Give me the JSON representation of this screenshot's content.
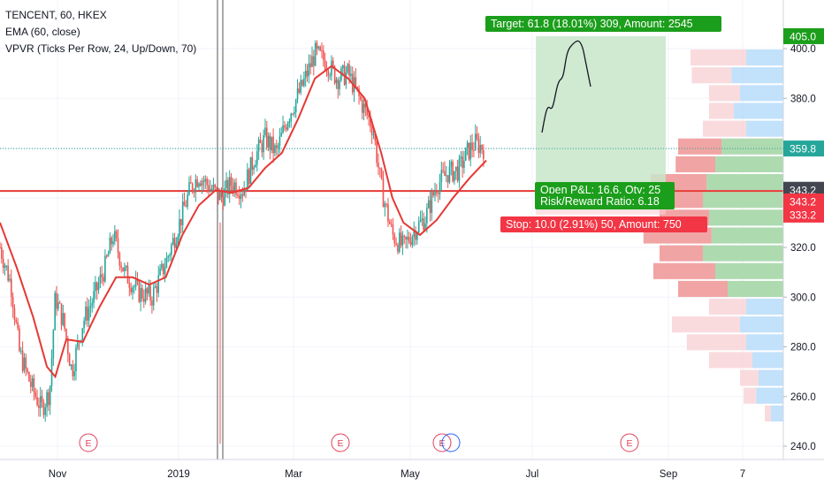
{
  "legend": {
    "symbol": "TENCENT, 60, HKEX",
    "ema": "EMA (60, close)",
    "vpvr": "VPVR (Ticks Per Row, 24, Up/Down, 70)"
  },
  "colors": {
    "up": "#26a69a",
    "down": "#ef5350",
    "ema": "#e53935",
    "support_line": "#e53935",
    "target_fill": "#c8e6c9",
    "target_label": "#1b9e1b",
    "stop_label": "#f23645",
    "vp_up_strong": "#a5d6a7",
    "vp_down_strong": "#ef9a9a",
    "vp_up_light": "#bbdefb",
    "vp_down_light": "#f8d7da"
  },
  "chart_data": {
    "type": "candlestick",
    "x_tick_labels": [
      "Nov",
      "2019",
      "Mar",
      "May",
      "Jul",
      "Sep",
      "7"
    ],
    "y_tick_labels": [
      "400.0",
      "380.0",
      "360.0",
      "340.0",
      "320.0",
      "300.0",
      "280.0",
      "260.0",
      "240.0"
    ],
    "ylim": [
      236,
      410
    ],
    "close_path": [
      {
        "t": 0,
        "p": 320
      },
      {
        "t": 0.02,
        "p": 305
      },
      {
        "t": 0.035,
        "p": 278
      },
      {
        "t": 0.055,
        "p": 265
      },
      {
        "t": 0.075,
        "p": 255
      },
      {
        "t": 0.09,
        "p": 262
      },
      {
        "t": 0.1,
        "p": 300
      },
      {
        "t": 0.115,
        "p": 290
      },
      {
        "t": 0.13,
        "p": 270
      },
      {
        "t": 0.15,
        "p": 290
      },
      {
        "t": 0.17,
        "p": 300
      },
      {
        "t": 0.19,
        "p": 312
      },
      {
        "t": 0.205,
        "p": 325
      },
      {
        "t": 0.225,
        "p": 310
      },
      {
        "t": 0.25,
        "p": 302
      },
      {
        "t": 0.275,
        "p": 300
      },
      {
        "t": 0.3,
        "p": 314
      },
      {
        "t": 0.325,
        "p": 330
      },
      {
        "t": 0.345,
        "p": 344
      },
      {
        "t": 0.36,
        "p": 349
      },
      {
        "t": 0.38,
        "p": 344
      },
      {
        "t": 0.4,
        "p": 340
      },
      {
        "t": 0.42,
        "p": 346
      },
      {
        "t": 0.44,
        "p": 343
      },
      {
        "t": 0.46,
        "p": 356
      },
      {
        "t": 0.48,
        "p": 364
      },
      {
        "t": 0.5,
        "p": 358
      },
      {
        "t": 0.52,
        "p": 372
      },
      {
        "t": 0.545,
        "p": 384
      },
      {
        "t": 0.57,
        "p": 398
      },
      {
        "t": 0.59,
        "p": 395
      },
      {
        "t": 0.61,
        "p": 388
      },
      {
        "t": 0.63,
        "p": 390
      },
      {
        "t": 0.65,
        "p": 380
      },
      {
        "t": 0.675,
        "p": 368
      },
      {
        "t": 0.69,
        "p": 344
      },
      {
        "t": 0.71,
        "p": 325
      },
      {
        "t": 0.73,
        "p": 320
      },
      {
        "t": 0.75,
        "p": 327
      },
      {
        "t": 0.77,
        "p": 332
      },
      {
        "t": 0.79,
        "p": 345
      },
      {
        "t": 0.81,
        "p": 350
      },
      {
        "t": 0.83,
        "p": 351
      },
      {
        "t": 0.845,
        "p": 358
      },
      {
        "t": 0.86,
        "p": 362
      },
      {
        "t": 0.875,
        "p": 360
      }
    ],
    "ema_path": [
      {
        "t": 0,
        "p": 330
      },
      {
        "t": 0.03,
        "p": 312
      },
      {
        "t": 0.06,
        "p": 292
      },
      {
        "t": 0.085,
        "p": 272
      },
      {
        "t": 0.1,
        "p": 268
      },
      {
        "t": 0.12,
        "p": 283
      },
      {
        "t": 0.15,
        "p": 282
      },
      {
        "t": 0.18,
        "p": 296
      },
      {
        "t": 0.21,
        "p": 308
      },
      {
        "t": 0.24,
        "p": 308
      },
      {
        "t": 0.27,
        "p": 305
      },
      {
        "t": 0.3,
        "p": 308
      },
      {
        "t": 0.33,
        "p": 325
      },
      {
        "t": 0.36,
        "p": 337
      },
      {
        "t": 0.39,
        "p": 343
      },
      {
        "t": 0.42,
        "p": 342
      },
      {
        "t": 0.45,
        "p": 344
      },
      {
        "t": 0.48,
        "p": 352
      },
      {
        "t": 0.51,
        "p": 358
      },
      {
        "t": 0.54,
        "p": 372
      },
      {
        "t": 0.57,
        "p": 388
      },
      {
        "t": 0.6,
        "p": 393
      },
      {
        "t": 0.63,
        "p": 388
      },
      {
        "t": 0.66,
        "p": 380
      },
      {
        "t": 0.69,
        "p": 358
      },
      {
        "t": 0.71,
        "p": 340
      },
      {
        "t": 0.73,
        "p": 330
      },
      {
        "t": 0.76,
        "p": 325
      },
      {
        "t": 0.79,
        "p": 331
      },
      {
        "t": 0.82,
        "p": 340
      },
      {
        "t": 0.85,
        "p": 348
      },
      {
        "t": 0.88,
        "p": 355
      }
    ],
    "horizontal_line": 342.7,
    "last_price": 359.8,
    "price_tags": [
      {
        "text": "405.0",
        "price": 405.0,
        "color": "#1b9e1b"
      },
      {
        "text": "359.8",
        "price": 359.8,
        "color": "#26a69a"
      },
      {
        "text": "343.2",
        "price": 343.2,
        "color": "#434651"
      },
      {
        "text": "343.2",
        "price": 338.5,
        "color": "#f23645"
      },
      {
        "text": "333.2",
        "price": 333.2,
        "color": "#f23645"
      }
    ],
    "position": {
      "entry": 343.2,
      "target": 405.0,
      "stop": 333.2,
      "target_label": "Target: 61.8 (18.01%) 309, Amount: 2545",
      "stop_label": "Stop: 10.0 (2.91%) 50, Amount: 750",
      "open_pnl_label": "Open P&L: 16.6, Qty: 25",
      "rr_label": "Risk/Reward Ratio: 6.18"
    },
    "earnings_markers": [
      "E",
      "E",
      "E",
      "E"
    ],
    "volume_profile_rows": [
      {
        "up": 0.3,
        "down": 0.45,
        "light": true
      },
      {
        "up": 0.42,
        "down": 0.32,
        "light": true
      },
      {
        "up": 0.35,
        "down": 0.25,
        "light": true
      },
      {
        "up": 0.4,
        "down": 0.2,
        "light": true
      },
      {
        "up": 0.3,
        "down": 0.35,
        "light": true
      },
      {
        "up": 0.5,
        "down": 0.35,
        "light": false
      },
      {
        "up": 0.55,
        "down": 0.32,
        "light": false
      },
      {
        "up": 0.62,
        "down": 0.45,
        "light": false
      },
      {
        "up": 0.65,
        "down": 0.5,
        "light": false
      },
      {
        "up": 0.6,
        "down": 0.4,
        "light": false
      },
      {
        "up": 0.58,
        "down": 0.55,
        "light": false
      },
      {
        "up": 0.65,
        "down": 0.35,
        "light": false
      },
      {
        "up": 0.55,
        "down": 0.5,
        "light": false
      },
      {
        "up": 0.45,
        "down": 0.4,
        "light": false
      },
      {
        "up": 0.3,
        "down": 0.3,
        "light": true
      },
      {
        "up": 0.35,
        "down": 0.55,
        "light": true
      },
      {
        "up": 0.3,
        "down": 0.48,
        "light": true
      },
      {
        "up": 0.25,
        "down": 0.35,
        "light": true
      },
      {
        "up": 0.2,
        "down": 0.15,
        "light": true
      },
      {
        "up": 0.22,
        "down": 0.1,
        "light": true
      },
      {
        "up": 0.1,
        "down": 0.05,
        "light": true
      }
    ]
  }
}
